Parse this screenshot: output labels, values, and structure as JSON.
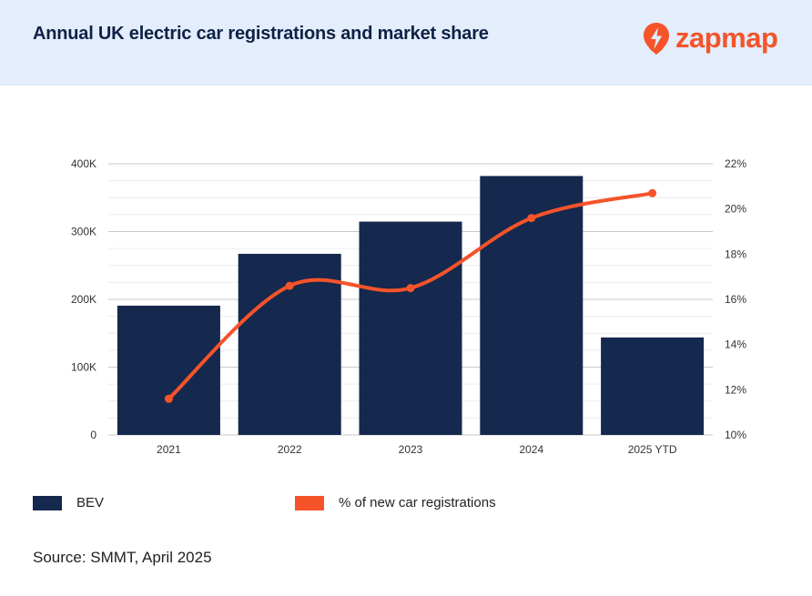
{
  "header": {
    "title": "Annual UK electric car registrations and market share",
    "logo_text": "zapmap",
    "logo_icon": "lightning-bolt-icon"
  },
  "colors": {
    "header_bg": "#e3edfb",
    "bar": "#15284d",
    "line": "#f5532a",
    "brand": "#f5532a"
  },
  "chart_data": {
    "type": "bar",
    "categories": [
      "2021",
      "2022",
      "2023",
      "2024",
      "2025 YTD"
    ],
    "series": [
      {
        "name": "BEV",
        "type": "bar",
        "axis": "left",
        "values": [
          190727,
          267203,
          314687,
          381970,
          143820
        ]
      },
      {
        "name": "% of new car registrations",
        "type": "line",
        "axis": "right",
        "values": [
          11.6,
          16.6,
          16.5,
          19.6,
          20.7
        ]
      }
    ],
    "y_left": {
      "min": 0,
      "max": 400000,
      "ticks": [
        "0",
        "100K",
        "200K",
        "300K",
        "400K"
      ]
    },
    "y_right": {
      "min": 10,
      "max": 22,
      "ticks": [
        "10%",
        "12%",
        "14%",
        "16%",
        "18%",
        "20%",
        "22%"
      ]
    },
    "grid": true,
    "legend_position": "bottom"
  },
  "legend": [
    {
      "label": "BEV"
    },
    {
      "label": "% of new car registrations"
    }
  ],
  "source": "Source: SMMT, April 2025"
}
